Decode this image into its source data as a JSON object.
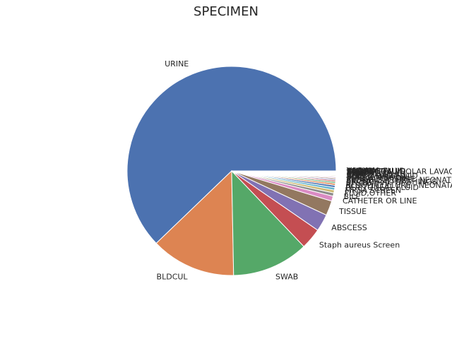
{
  "chart_data": {
    "type": "pie",
    "title": "SPECIMEN",
    "start_angle_deg": 0,
    "direction": "counterclockwise",
    "slice_edge_color": "#ffffff",
    "slices": [
      {
        "label": "URINE",
        "value": 63.0,
        "color": "#4c72b0"
      },
      {
        "label": "BLDCUL",
        "value": 13.3,
        "color": "#dd8452"
      },
      {
        "label": "SWAB",
        "value": 12.0,
        "color": "#55a868"
      },
      {
        "label": "Staph aureus Screen",
        "value": 3.3,
        "color": "#c44e52"
      },
      {
        "label": "ABSCESS",
        "value": 2.7,
        "color": "#8172b3"
      },
      {
        "label": "TISSUE",
        "value": 2.3,
        "color": "#937860"
      },
      {
        "label": "CATHETER OR LINE",
        "value": 0.8,
        "color": "#da8bc3"
      },
      {
        "label": "BILE",
        "value": 0.5,
        "color": "#8c8c8c"
      },
      {
        "label": "FLUID,OTHER",
        "value": 0.45,
        "color": "#ccb974"
      },
      {
        "label": "MRSA SCREEN",
        "value": 0.4,
        "color": "#64b5cd"
      },
      {
        "label": "PERITONEAL FLUID",
        "value": 0.35,
        "color": "#4c72b0"
      },
      {
        "label": "BLOOD CULTURE - NEONATAL CU",
        "value": 0.3,
        "color": "#dd8452"
      },
      {
        "label": "SPUTUM",
        "value": 0.25,
        "color": "#55a868"
      },
      {
        "label": "BRONCHIAL WASHINGS",
        "value": 0.22,
        "color": "#c44e52"
      },
      {
        "label": "BLOOD CULTURE - NEONATE",
        "value": 0.2,
        "color": "#8172b3"
      },
      {
        "label": "FUNGAL CULTURE",
        "value": 0.18,
        "color": "#937860"
      },
      {
        "label": "FOREIGN BODY",
        "value": 0.15,
        "color": "#da8bc3"
      },
      {
        "label": "BONE MARROW",
        "value": 0.13,
        "color": "#8c8c8c"
      },
      {
        "label": "BLOOD BAG FLUID",
        "value": 0.12,
        "color": "#ccb974"
      },
      {
        "label": "CSF",
        "value": 0.1,
        "color": "#64b5cd"
      },
      {
        "label": "EYE",
        "value": 0.09,
        "color": "#4c72b0"
      },
      {
        "label": "JOINT FLUID",
        "value": 0.08,
        "color": "#dd8452"
      },
      {
        "label": "FECES",
        "value": 0.07,
        "color": "#55a868"
      },
      {
        "label": "THROAT",
        "value": 0.06,
        "color": "#c44e52"
      },
      {
        "label": "ASPIRATE",
        "value": 0.05,
        "color": "#8172b3"
      },
      {
        "label": "STOOL",
        "value": 0.05,
        "color": "#937860"
      },
      {
        "label": "BRONCHOALVEOLAR LAVAGE",
        "value": 0.04,
        "color": "#da8bc3"
      },
      {
        "label": "PLEURAL FLUID",
        "value": 0.04,
        "color": "#8c8c8c"
      },
      {
        "label": "ANORECTAL",
        "value": 0.03,
        "color": "#ccb974"
      },
      {
        "label": "CERVIX",
        "value": 0.03,
        "color": "#64b5cd"
      },
      {
        "label": "DIALYSIS FLUID",
        "value": 0.02,
        "color": "#4c72b0"
      },
      {
        "label": "VAGINAL",
        "value": 0.02,
        "color": "#dd8452"
      }
    ]
  }
}
